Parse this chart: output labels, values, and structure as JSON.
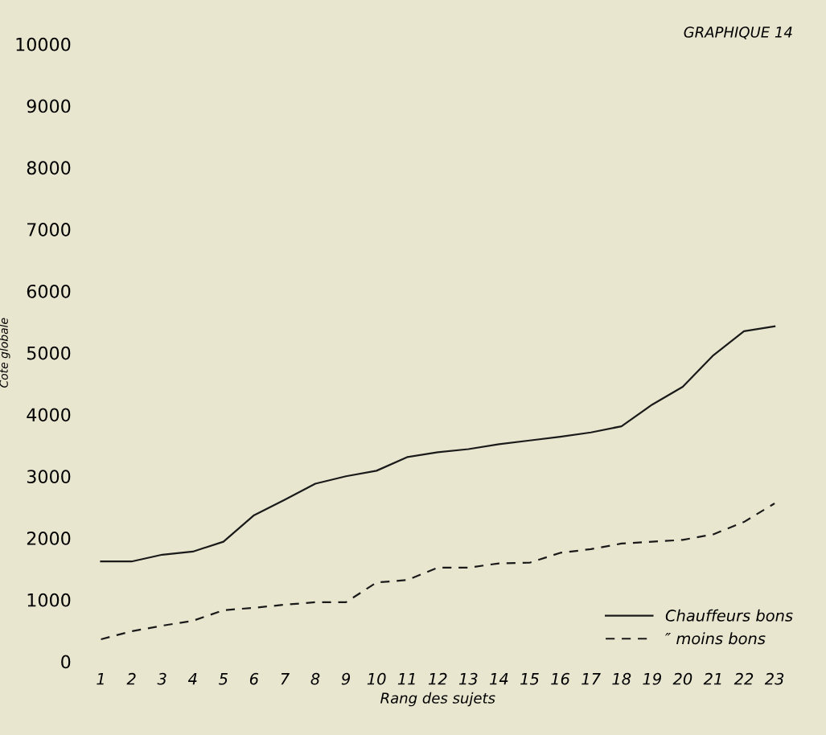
{
  "chart_data": {
    "type": "line",
    "title": "GRAPHIQUE 14",
    "xlabel": "Rang des sujets",
    "ylabel": "Cote globale",
    "categories": [
      "1",
      "2",
      "3",
      "4",
      "5",
      "6",
      "7",
      "8",
      "9",
      "10",
      "11",
      "12",
      "13",
      "14",
      "15",
      "16",
      "17",
      "18",
      "19",
      "20",
      "21",
      "22",
      "23"
    ],
    "series": [
      {
        "name": "Chauffeurs bons",
        "color": "#1a1a1a",
        "line_style": "solid",
        "values": [
          1620,
          1620,
          1730,
          1780,
          1940,
          2370,
          2620,
          2880,
          3000,
          3090,
          3310,
          3390,
          3440,
          3520,
          3580,
          3640,
          3710,
          3810,
          4160,
          4450,
          4960,
          5350,
          5430
        ]
      },
      {
        "name": "″ moins bons",
        "color": "#1a1a1a",
        "line_style": "dashed",
        "values": [
          360,
          490,
          580,
          660,
          830,
          870,
          920,
          960,
          960,
          1280,
          1320,
          1520,
          1520,
          1590,
          1600,
          1760,
          1820,
          1910,
          1940,
          1970,
          2060,
          2260,
          2560
        ]
      }
    ],
    "ylim": [
      0,
      10000
    ],
    "yticks": [
      0,
      1000,
      2000,
      3000,
      4000,
      5000,
      6000,
      7000,
      8000,
      9000,
      10000
    ],
    "grid": false,
    "legend": "bottom right",
    "marker": "none"
  }
}
